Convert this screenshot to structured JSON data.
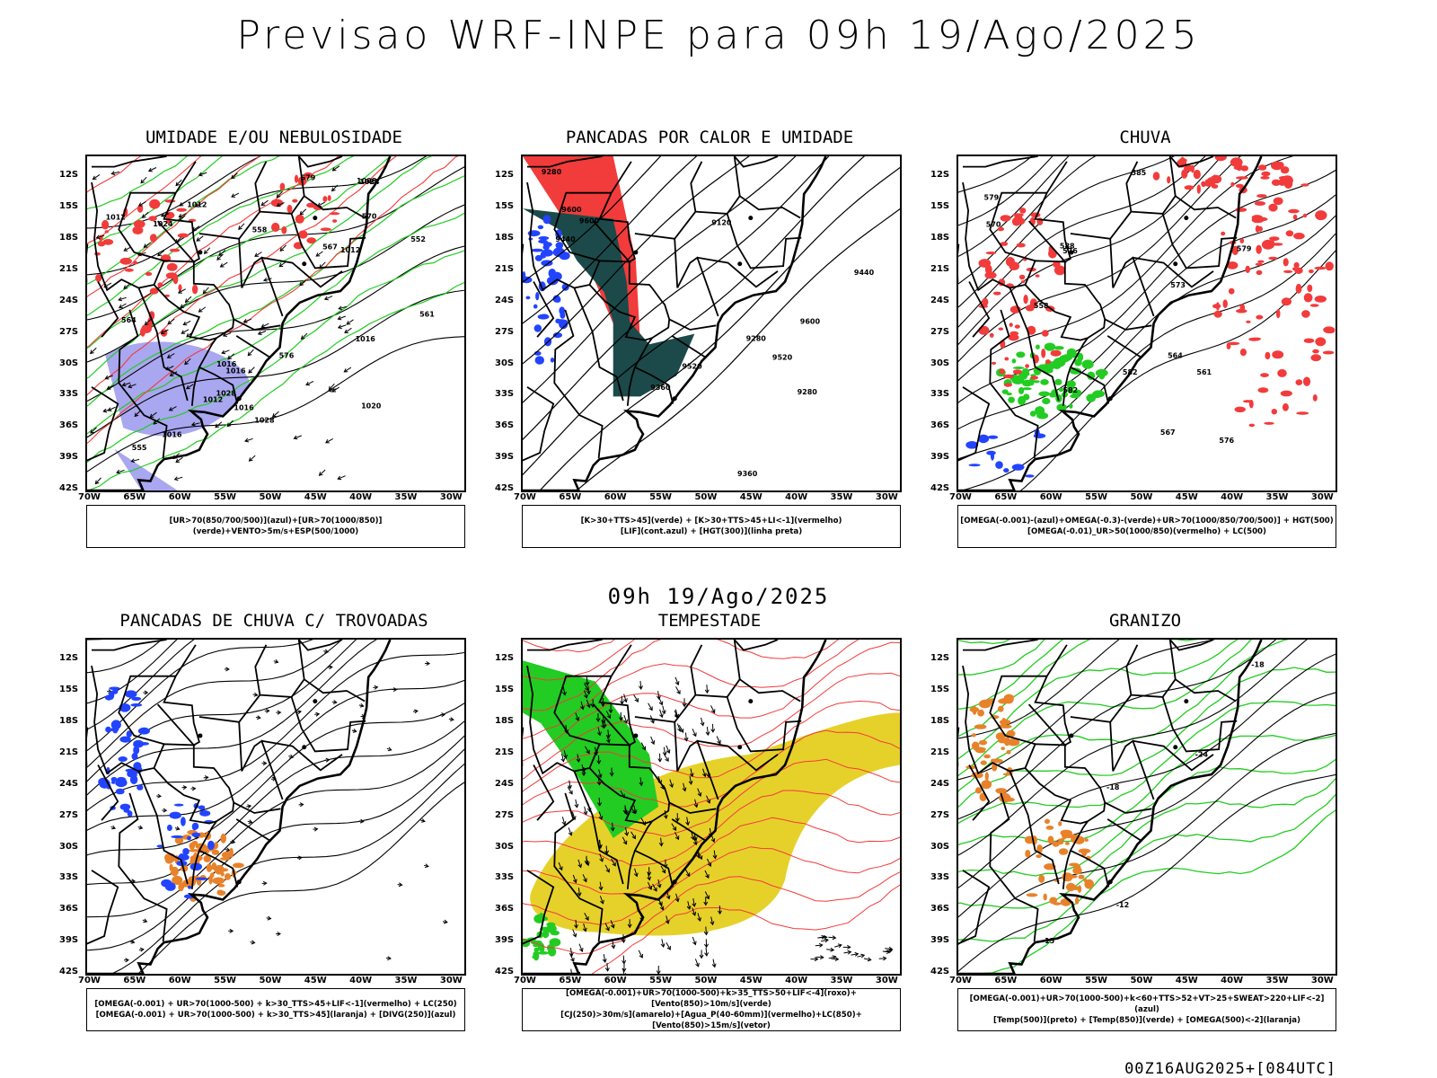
{
  "page": {
    "title": "Previsao WRF-INPE  para 09h 19/Ago/2025",
    "subtitle": "09h 19/Ago/2025",
    "footer": "00Z16AUG2025+[084UTC]"
  },
  "axes": {
    "lat_labels": [
      "12S",
      "15S",
      "18S",
      "21S",
      "24S",
      "27S",
      "30S",
      "33S",
      "36S",
      "39S",
      "42S"
    ],
    "lon_labels": [
      "70W",
      "65W",
      "60W",
      "55W",
      "50W",
      "45W",
      "40W",
      "35W",
      "30W"
    ]
  },
  "colors": {
    "blue_humidity": "#a9a7f0",
    "green": "#22cc22",
    "red": "#f23b3b",
    "blue": "#2244ff",
    "dark_teal": "#1c4a4a",
    "yellow": "#e6d12a",
    "orange": "#e8822a"
  },
  "panels": [
    {
      "title": "UMIDADE E/OU NEBULOSIDADE",
      "legend": [
        "[UR>70(850/700/500)](azul)+[UR>70(1000/850)](verde)+VENTO>5m/s+ESP(500/1000)"
      ],
      "labels": [
        "1012",
        "1012",
        "1016",
        "1016",
        "1020",
        "1024",
        "1024",
        "1028",
        "1008",
        "1012",
        "1016",
        "1016",
        "1012",
        "1016",
        "1028",
        "561",
        "555",
        "552",
        "570",
        "579",
        "576",
        "564",
        "567",
        "558"
      ]
    },
    {
      "title": "PANCADAS POR CALOR E UMIDADE",
      "legend": [
        "[K>30+TTS>45](verde) + [K>30+TTS>45+LI<-1](vermelho)",
        "[LIF](cont.azul) + [HGT(300)](linha preta)"
      ],
      "labels": [
        "9600",
        "9600",
        "9600",
        "9520",
        "9440",
        "9360",
        "9280",
        "9280",
        "9520",
        "9440",
        "9360",
        "9120",
        "9280"
      ]
    },
    {
      "title": "CHUVA",
      "legend": [
        "[OMEGA(-0.001)-(azul)+OMEGA(-0.3)-(verde)+UR>70(1000/850/700/500)] + HGT(500)",
        "[OMEGA(-0.01)_UR>50(1000/850)(vermelho) + LC(500)"
      ],
      "labels": [
        "582",
        "585",
        "588",
        "579",
        "576",
        "573",
        "570",
        "567",
        "582",
        "579",
        "576",
        "564",
        "561",
        "558"
      ]
    },
    {
      "title": "PANCADAS DE CHUVA C/ TROVOADAS",
      "legend": [
        "[OMEGA(-0.001) + UR>70(1000-500) + k>30_TTS>45+LIF<-1](vermelho) + LC(250)",
        "[OMEGA(-0.001) + UR>70(1000-500) + k>30_TTS>45](laranja) + [DIVG(250)](azul)"
      ],
      "labels": []
    },
    {
      "title": "TEMPESTADE",
      "legend": [
        "[OMEGA(-0.001)+UR>70(1000-500)+k>35_TTS>50+LIF<-4](roxo)+[Vento(850)>10m/s](verde)",
        "[CJ(250)>30m/s](amarelo)+[Agua_P(40-60mm)](vermelho)+LC(850)+[Vento(850)>15m/s](vetor)"
      ],
      "labels": []
    },
    {
      "title": "GRANIZO",
      "legend": [
        "[OMEGA(-0.001)+UR>70(1000-500)+k<60+TTS>52+VT>25+SWEAT>220+LIF<-2](azul)",
        "[Temp(500)](preto) + [Temp(850)](verde) + [OMEGA(500)<-2](laranja)"
      ],
      "labels": [
        "-12",
        "-15",
        "-18",
        "-24",
        "-18"
      ]
    }
  ]
}
